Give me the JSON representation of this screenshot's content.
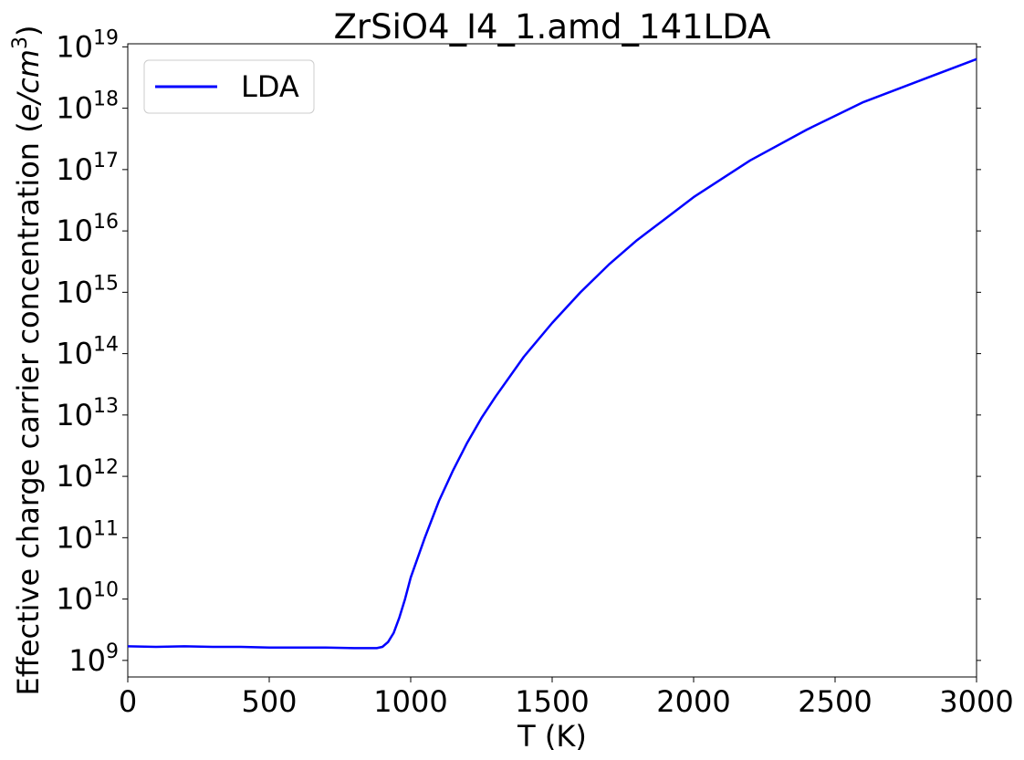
{
  "chart_data": {
    "type": "line",
    "title": "ZrSiO4_I4_1.amd_141LDA",
    "xlabel": "T (K)",
    "ylabel": "Effective charge carrier concentration",
    "ylabel_unit_italic": "e/cm",
    "ylabel_unit_exp": "3",
    "yscale": "log",
    "xlim": [
      0,
      3000
    ],
    "ylim_log10": [
      8.73,
      19.05
    ],
    "xticks": [
      "0",
      "500",
      "1000",
      "1500",
      "2000",
      "2500",
      "3000"
    ],
    "yticks_exp": [
      "9",
      "10",
      "11",
      "12",
      "13",
      "14",
      "15",
      "16",
      "17",
      "18",
      "19"
    ],
    "ytick_base": "10",
    "grid": false,
    "legend_position": "top-left",
    "series": [
      {
        "name": "LDA",
        "color": "#0000ff",
        "x": [
          0,
          100,
          200,
          300,
          400,
          500,
          600,
          700,
          800,
          880,
          900,
          920,
          940,
          960,
          980,
          1000,
          1050,
          1100,
          1150,
          1200,
          1250,
          1300,
          1400,
          1500,
          1600,
          1700,
          1800,
          1900,
          2000,
          2200,
          2400,
          2600,
          2800,
          3000
        ],
        "y_log10": [
          9.23,
          9.22,
          9.23,
          9.22,
          9.22,
          9.21,
          9.21,
          9.21,
          9.2,
          9.2,
          9.22,
          9.3,
          9.45,
          9.7,
          10.0,
          10.35,
          11.0,
          11.6,
          12.1,
          12.55,
          12.95,
          13.3,
          13.95,
          14.5,
          15.0,
          15.45,
          15.85,
          16.2,
          16.55,
          17.15,
          17.65,
          18.1,
          18.45,
          18.8
        ]
      }
    ]
  }
}
